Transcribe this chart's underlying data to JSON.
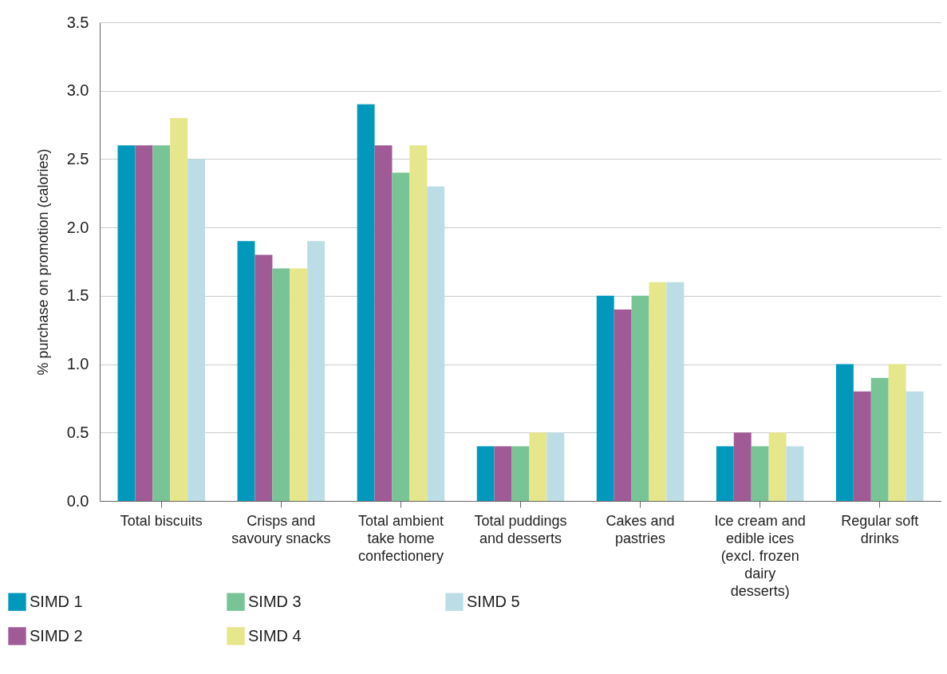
{
  "chart_data": {
    "type": "bar",
    "ylabel": "% purchase on promotion (calories)",
    "categories": [
      "Total biscuits",
      "Crisps and savoury snacks",
      "Total ambient take home confectionery",
      "Total puddings and desserts",
      "Cakes and pastries",
      "Ice cream and edible ices (excl. frozen dairy desserts)",
      "Regular soft drinks"
    ],
    "series": [
      {
        "name": "SIMD 1",
        "color": "#0099bb",
        "values": [
          2.6,
          1.9,
          2.9,
          0.4,
          1.5,
          0.4,
          1.0
        ]
      },
      {
        "name": "SIMD 2",
        "color": "#a05a96",
        "values": [
          2.6,
          1.8,
          2.6,
          0.4,
          1.4,
          0.5,
          0.8
        ]
      },
      {
        "name": "SIMD 3",
        "color": "#78c496",
        "values": [
          2.6,
          1.7,
          2.4,
          0.4,
          1.5,
          0.4,
          0.9
        ]
      },
      {
        "name": "SIMD 4",
        "color": "#e6e68c",
        "values": [
          2.8,
          1.7,
          2.6,
          0.5,
          1.6,
          0.5,
          1.0
        ]
      },
      {
        "name": "SIMD 5",
        "color": "#bcdde6",
        "values": [
          2.5,
          1.9,
          2.3,
          0.5,
          1.6,
          0.4,
          0.8
        ]
      }
    ],
    "ylim": [
      0,
      3.5
    ],
    "yticks": [
      {
        "value": 0,
        "label": "0.0"
      },
      0.5,
      {
        "value": 1,
        "label": "1.0"
      },
      1.5,
      {
        "value": 2,
        "label": "2.0"
      },
      2.5,
      {
        "value": 3,
        "label": "3.0"
      },
      3.5
    ],
    "grid": "y",
    "legend": "bottom"
  }
}
